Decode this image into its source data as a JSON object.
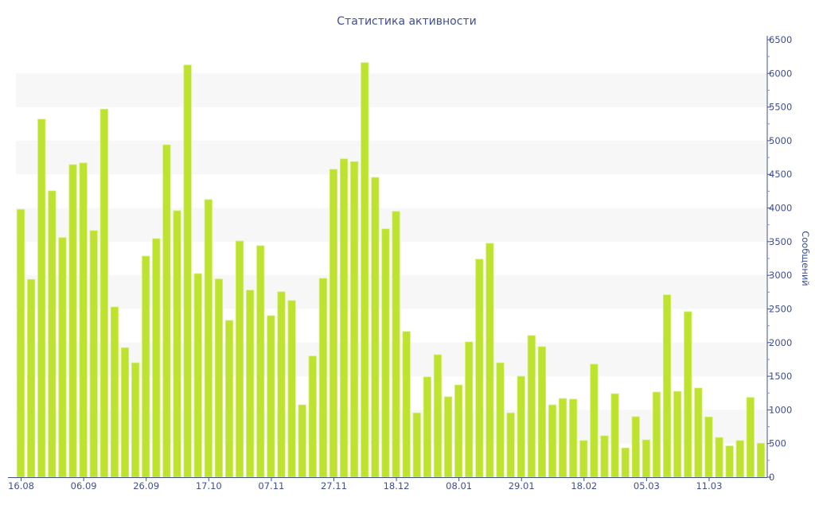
{
  "chart_data": {
    "type": "bar",
    "title": "Статистика активности",
    "ylabel": "Сообщений",
    "xlabel": "",
    "ylim": [
      0,
      6500
    ],
    "y_ticks": [
      0,
      500,
      1000,
      1500,
      2000,
      2500,
      3000,
      3500,
      4000,
      4500,
      5000,
      5500,
      6000,
      6500
    ],
    "y_axis_position": "right",
    "grid": "alternating horizontal bands",
    "x_tick_labels": [
      {
        "index": 0,
        "label": "16.08"
      },
      {
        "index": 6,
        "label": "06.09"
      },
      {
        "index": 12,
        "label": "26.09"
      },
      {
        "index": 18,
        "label": "17.10"
      },
      {
        "index": 24,
        "label": "07.11"
      },
      {
        "index": 30,
        "label": "27.11"
      },
      {
        "index": 36,
        "label": "18.12"
      },
      {
        "index": 42,
        "label": "08.01"
      },
      {
        "index": 48,
        "label": "29.01"
      },
      {
        "index": 54,
        "label": "18.02"
      },
      {
        "index": 60,
        "label": "05.03"
      },
      {
        "index": 66,
        "label": "11.03"
      }
    ],
    "values": [
      3980,
      2940,
      5320,
      4255,
      3560,
      4645,
      4670,
      3665,
      5470,
      2530,
      1925,
      1700,
      3285,
      3545,
      4940,
      3960,
      6125,
      3025,
      4125,
      2945,
      2330,
      3510,
      2780,
      3440,
      2400,
      2755,
      2625,
      1075,
      1800,
      2955,
      4575,
      4730,
      4690,
      6160,
      4455,
      3690,
      3950,
      2165,
      955,
      1490,
      1820,
      1195,
      1370,
      2010,
      3240,
      3475,
      1700,
      955,
      1500,
      2105,
      1940,
      1075,
      1170,
      1160,
      545,
      1680,
      615,
      1240,
      435,
      900,
      555,
      1265,
      2710,
      1275,
      2460,
      1325,
      895,
      590,
      465,
      545,
      1185,
      505
    ],
    "colors": {
      "bar": "#bde22f",
      "axis": "#3e4f94",
      "band": "#f7f7f7"
    }
  }
}
